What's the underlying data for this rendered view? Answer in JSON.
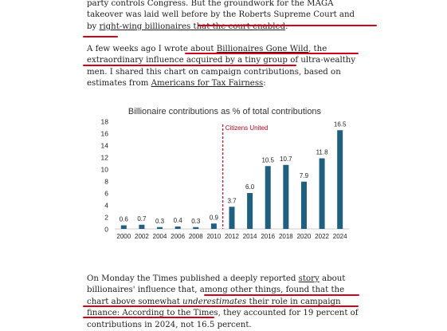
{
  "article": {
    "p1": {
      "t1": "party controls Congress. But the groundwork for the MAGA takeover was laid well before by the Roberts Supreme Court and by ",
      "link1": "right-wing billionaires that the court enabled",
      "t2": "."
    },
    "p2": {
      "t1": "A few weeks ago I wrote about ",
      "link1": "Billionaires Gone Wild",
      "t2": ", the extraordinary influence acquired by a tiny group of ultra-wealthy men.",
      "t3": " I shared this chart on campaign contributions, based on estimates from ",
      "link2": "Americans for Tax Fairness",
      "t4": ":"
    },
    "p3": {
      "t1": "On Monday the Times published a deeply reported ",
      "link1": "story",
      "t2": " about billionaires' influence that, among other things, found that ",
      "t3": "the chart above somewhat ",
      "em": "underestimates",
      "t4": " their role in campaign finance: According to the Times, they accounted for 19 percent of contributions in 2024, not 16.5 percent."
    }
  },
  "colors": {
    "bar": "#1f5f7f",
    "highlight": "#d0021b",
    "annotation": "#d0021b"
  },
  "chart_data": {
    "type": "bar",
    "title": "Billionaire contributions as % of total contributions",
    "categories": [
      "2000",
      "2002",
      "2004",
      "2006",
      "2008",
      "2010",
      "2012",
      "2014",
      "2016",
      "2018",
      "2020",
      "2022",
      "2024"
    ],
    "values": [
      0.6,
      0.7,
      0.3,
      0.4,
      0.3,
      0.9,
      3.7,
      6.0,
      10.5,
      10.7,
      7.9,
      11.8,
      16.5
    ],
    "value_labels": [
      "0.6",
      "0.7",
      "0.3",
      "0.4",
      "0.3",
      "0.9",
      "3.7",
      "6.0",
      "10.5",
      "10.7",
      "7.9",
      "11.8",
      "16.5"
    ],
    "yticks": [
      "0",
      "2",
      "4",
      "6",
      "8",
      "10",
      "12",
      "14",
      "16",
      "18"
    ],
    "ylim": [
      0,
      18
    ],
    "grid": false,
    "annotation": {
      "label": "Citizens United",
      "between": [
        "2010",
        "2012"
      ]
    }
  }
}
